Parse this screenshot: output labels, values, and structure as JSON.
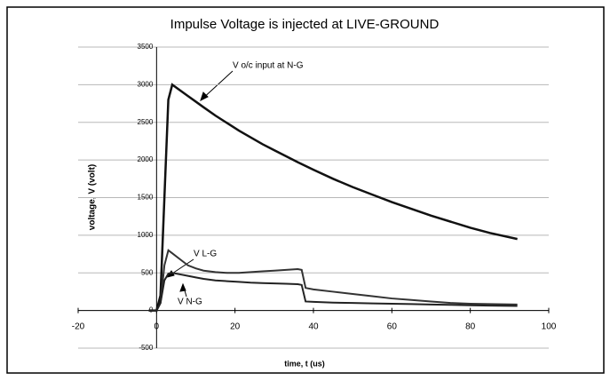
{
  "chart_data": {
    "type": "line",
    "title": "Impulse Voltage is injected at LIVE-GROUND",
    "xlabel": "time, t (us)",
    "ylabel": "voltage, V (volt)",
    "x": [
      -2,
      0,
      1,
      2,
      3,
      4,
      6,
      8,
      10,
      12,
      15,
      18,
      21,
      24,
      27,
      30,
      33,
      36,
      37,
      38,
      40,
      45,
      50,
      55,
      60,
      65,
      70,
      75,
      80,
      85,
      92
    ],
    "series": [
      {
        "name": "V o/c input at N-G",
        "color": "#111111",
        "values": [
          0,
          0,
          200,
          1500,
          2800,
          3000,
          2925,
          2850,
          2775,
          2700,
          2590,
          2490,
          2390,
          2300,
          2210,
          2130,
          2050,
          1970,
          1945,
          1920,
          1870,
          1750,
          1640,
          1540,
          1440,
          1350,
          1260,
          1180,
          1100,
          1030,
          950
        ]
      },
      {
        "name": "V L-G",
        "color": "#333333",
        "values": [
          0,
          0,
          100,
          600,
          800,
          760,
          680,
          600,
          560,
          530,
          510,
          500,
          500,
          510,
          520,
          530,
          540,
          550,
          540,
          300,
          280,
          250,
          220,
          190,
          160,
          140,
          120,
          100,
          90,
          85,
          80
        ]
      },
      {
        "name": "V N-G",
        "color": "#222222",
        "values": [
          0,
          0,
          100,
          400,
          490,
          500,
          480,
          460,
          440,
          420,
          400,
          390,
          380,
          370,
          365,
          360,
          355,
          350,
          340,
          120,
          115,
          105,
          100,
          95,
          90,
          85,
          80,
          75,
          70,
          65,
          60
        ]
      }
    ],
    "xlim": [
      -20,
      100
    ],
    "xticks": [
      -20,
      0,
      20,
      40,
      60,
      80,
      100
    ],
    "ylim": [
      -500,
      3500
    ],
    "yticks": [
      -500,
      0,
      500,
      1000,
      1500,
      2000,
      2500,
      3000,
      3500
    ],
    "grid": true
  }
}
